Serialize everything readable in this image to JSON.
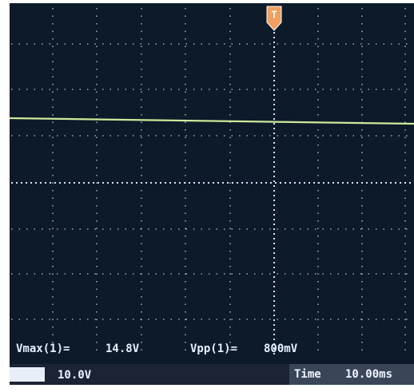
{
  "trigger_marker": "T",
  "measurements": [
    {
      "label": "Vmax(1)=",
      "value": "14.8V"
    },
    {
      "label": "Vpp(1)=",
      "value": "800mV"
    }
  ],
  "status_bar": {
    "channel_scale": "10.0V",
    "timebase_label": "Time",
    "timebase": "10.00ms"
  }
}
